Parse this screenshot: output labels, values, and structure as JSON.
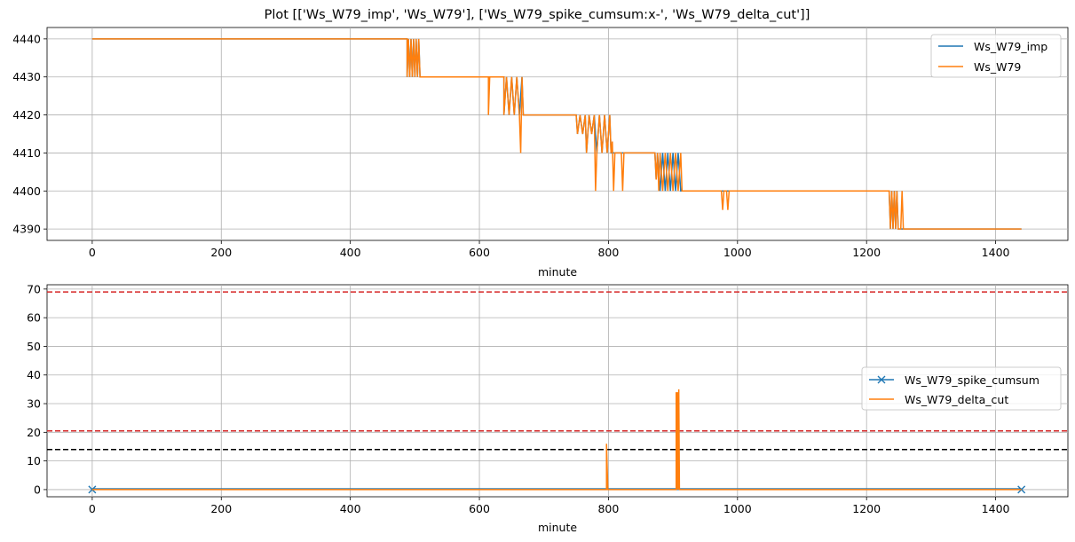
{
  "title": "Plot [['Ws_W79_imp', 'Ws_W79'], ['Ws_W79_spike_cumsum:x-', 'Ws_W79_delta_cut']]",
  "colors": {
    "blue": "#1f77b4",
    "orange": "#ff7f0e",
    "red": "#d62728",
    "black": "#000000",
    "grid": "#b0b0b0"
  },
  "chart_data": [
    {
      "type": "line",
      "xlabel": "minute",
      "ylabel": "",
      "xlim": [
        -70,
        1512
      ],
      "ylim": [
        4387,
        4443
      ],
      "xticks": [
        0,
        200,
        400,
        600,
        800,
        1000,
        1200,
        1400
      ],
      "yticks": [
        4390,
        4400,
        4410,
        4420,
        4430,
        4440
      ],
      "grid": true,
      "legend": "upper right",
      "series": [
        {
          "name": "Ws_W79_imp",
          "color": "#1f77b4",
          "points": [
            [
              0,
              4440
            ],
            [
              488,
              4440
            ],
            [
              488,
              4430
            ],
            [
              490,
              4440
            ],
            [
              492,
              4430
            ],
            [
              494,
              4440
            ],
            [
              496,
              4430
            ],
            [
              498,
              4440
            ],
            [
              500,
              4430
            ],
            [
              502,
              4440
            ],
            [
              504,
              4430
            ],
            [
              506,
              4440
            ],
            [
              508,
              4430
            ],
            [
              638,
              4430
            ],
            [
              638,
              4420
            ],
            [
              642,
              4430
            ],
            [
              646,
              4420
            ],
            [
              650,
              4430
            ],
            [
              654,
              4420
            ],
            [
              658,
              4430
            ],
            [
              662,
              4420
            ],
            [
              666,
              4430
            ],
            [
              668,
              4420
            ],
            [
              750,
              4420
            ],
            [
              752,
              4415
            ],
            [
              756,
              4420
            ],
            [
              760,
              4415
            ],
            [
              764,
              4420
            ],
            [
              766,
              4410
            ],
            [
              770,
              4420
            ],
            [
              774,
              4415
            ],
            [
              778,
              4420
            ],
            [
              782,
              4410
            ],
            [
              786,
              4420
            ],
            [
              790,
              4410
            ],
            [
              794,
              4420
            ],
            [
              798,
              4410
            ],
            [
              802,
              4420
            ],
            [
              804,
              4410
            ],
            [
              872,
              4410
            ],
            [
              874,
              4403
            ],
            [
              876,
              4410
            ],
            [
              880,
              4400
            ],
            [
              884,
              4410
            ],
            [
              888,
              4400
            ],
            [
              892,
              4410
            ],
            [
              896,
              4400
            ],
            [
              900,
              4410
            ],
            [
              904,
              4400
            ],
            [
              908,
              4410
            ],
            [
              912,
              4400
            ],
            [
              1235,
              4400
            ],
            [
              1237,
              4390
            ],
            [
              1239,
              4400
            ],
            [
              1241,
              4390
            ],
            [
              1243,
              4400
            ],
            [
              1245,
              4390
            ],
            [
              1247,
              4400
            ],
            [
              1249,
              4390
            ],
            [
              1440,
              4390
            ]
          ]
        },
        {
          "name": "Ws_W79",
          "color": "#ff7f0e",
          "points": [
            [
              0,
              4440
            ],
            [
              488,
              4440
            ],
            [
              488,
              4430
            ],
            [
              490,
              4440
            ],
            [
              492,
              4430
            ],
            [
              494,
              4440
            ],
            [
              496,
              4430
            ],
            [
              498,
              4440
            ],
            [
              500,
              4430
            ],
            [
              502,
              4440
            ],
            [
              504,
              4430
            ],
            [
              506,
              4440
            ],
            [
              508,
              4430
            ],
            [
              614,
              4430
            ],
            [
              614,
              4420
            ],
            [
              616,
              4430
            ],
            [
              638,
              4430
            ],
            [
              638,
              4420
            ],
            [
              642,
              4430
            ],
            [
              646,
              4420
            ],
            [
              650,
              4430
            ],
            [
              654,
              4420
            ],
            [
              658,
              4430
            ],
            [
              662,
              4420
            ],
            [
              664,
              4410
            ],
            [
              666,
              4430
            ],
            [
              668,
              4420
            ],
            [
              750,
              4420
            ],
            [
              752,
              4415
            ],
            [
              756,
              4420
            ],
            [
              760,
              4415
            ],
            [
              764,
              4420
            ],
            [
              766,
              4410
            ],
            [
              770,
              4420
            ],
            [
              774,
              4415
            ],
            [
              778,
              4420
            ],
            [
              780,
              4400
            ],
            [
              782,
              4410
            ],
            [
              786,
              4420
            ],
            [
              790,
              4410
            ],
            [
              794,
              4420
            ],
            [
              798,
              4410
            ],
            [
              802,
              4420
            ],
            [
              804,
              4410
            ],
            [
              806,
              4413
            ],
            [
              808,
              4400
            ],
            [
              810,
              4410
            ],
            [
              820,
              4410
            ],
            [
              822,
              4400
            ],
            [
              824,
              4410
            ],
            [
              872,
              4410
            ],
            [
              874,
              4403
            ],
            [
              876,
              4410
            ],
            [
              878,
              4400
            ],
            [
              880,
              4410
            ],
            [
              884,
              4400
            ],
            [
              888,
              4410
            ],
            [
              892,
              4400
            ],
            [
              896,
              4410
            ],
            [
              900,
              4400
            ],
            [
              904,
              4410
            ],
            [
              908,
              4400
            ],
            [
              912,
              4410
            ],
            [
              914,
              4400
            ],
            [
              975,
              4400
            ],
            [
              977,
              4395
            ],
            [
              979,
              4400
            ],
            [
              983,
              4400
            ],
            [
              985,
              4395
            ],
            [
              987,
              4400
            ],
            [
              1235,
              4400
            ],
            [
              1237,
              4390
            ],
            [
              1239,
              4400
            ],
            [
              1241,
              4390
            ],
            [
              1243,
              4400
            ],
            [
              1245,
              4390
            ],
            [
              1247,
              4400
            ],
            [
              1249,
              4390
            ],
            [
              1253,
              4390
            ],
            [
              1255,
              4400
            ],
            [
              1257,
              4390
            ],
            [
              1440,
              4390
            ]
          ]
        }
      ]
    },
    {
      "type": "line",
      "xlabel": "minute",
      "ylabel": "",
      "xlim": [
        -70,
        1512
      ],
      "ylim": [
        -2.5,
        71.5
      ],
      "xticks": [
        0,
        200,
        400,
        600,
        800,
        1000,
        1200,
        1400
      ],
      "yticks": [
        0,
        10,
        20,
        30,
        40,
        50,
        60,
        70
      ],
      "grid": true,
      "legend": "center right",
      "hlines": [
        {
          "y": 69,
          "color": "#d62728",
          "style": "dashed"
        },
        {
          "y": 20.5,
          "color": "#d62728",
          "style": "dashed"
        },
        {
          "y": 14,
          "color": "#000000",
          "style": "dashed"
        }
      ],
      "series": [
        {
          "name": "Ws_W79_spike_cumsum",
          "color": "#1f77b4",
          "marker": "x",
          "x_range": [
            0,
            1440
          ],
          "y_values": [
            0,
            0.5
          ]
        },
        {
          "name": "Ws_W79_delta_cut",
          "color": "#ff7f0e",
          "points": [
            [
              0,
              0
            ],
            [
              797,
              0
            ],
            [
              797,
              16
            ],
            [
              799,
              0
            ],
            [
              905,
              0
            ],
            [
              905,
              34
            ],
            [
              906,
              0
            ],
            [
              907,
              34
            ],
            [
              908,
              0
            ],
            [
              909,
              35
            ],
            [
              910,
              0
            ],
            [
              1440,
              0
            ]
          ]
        }
      ]
    }
  ]
}
